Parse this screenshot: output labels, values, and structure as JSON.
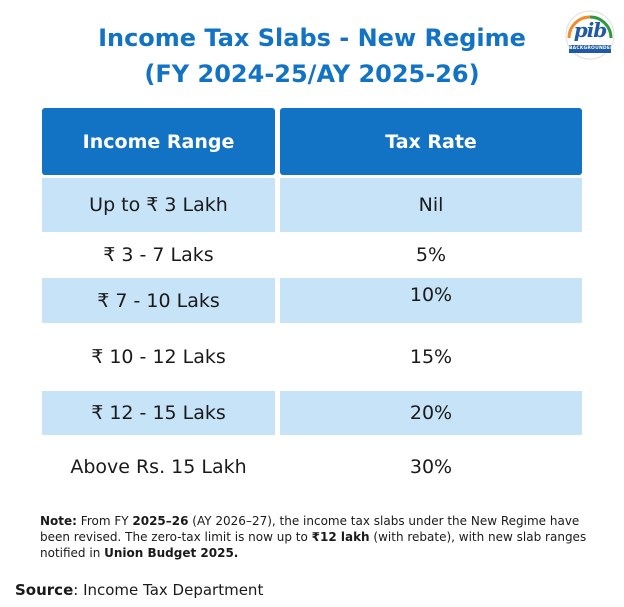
{
  "title": {
    "line1": "Income Tax Slabs - New Regime",
    "line2": "(FY 2024-25/AY 2025-26)"
  },
  "logo": {
    "word": "pib",
    "band": "BACKGROUNDERS",
    "icon": "pib-logo-icon"
  },
  "table": {
    "headers": [
      "Income Range",
      "Tax Rate"
    ],
    "rows": [
      {
        "range": "Up to ₹ 3 Lakh",
        "rate": "Nil"
      },
      {
        "range": "₹ 3 - 7 Laks",
        "rate": "5%"
      },
      {
        "range": "₹ 7 - 10 Laks",
        "rate": "10%"
      },
      {
        "range": "₹ 10 - 12 Laks",
        "rate": "15%"
      },
      {
        "range": "₹ 12 - 15 Laks",
        "rate": "20%"
      },
      {
        "range": "Above Rs. 15 Lakh",
        "rate": "30%"
      }
    ]
  },
  "note": {
    "label": "Note:",
    "t1": " From FY ",
    "fy": "2025–26",
    "t2": " (AY 2026–27), the income tax slabs under the New Regime have been revised. The zero-tax limit is now up to ",
    "limit": "₹12 lakh",
    "t3": " (with rebate), with new slab ranges notified in ",
    "budget": "Union Budget 2025."
  },
  "source": {
    "label": "Source",
    "text": ": Income Tax Department"
  },
  "colors": {
    "accent": "#1273c5",
    "row_blue": "#c7e3f7"
  }
}
